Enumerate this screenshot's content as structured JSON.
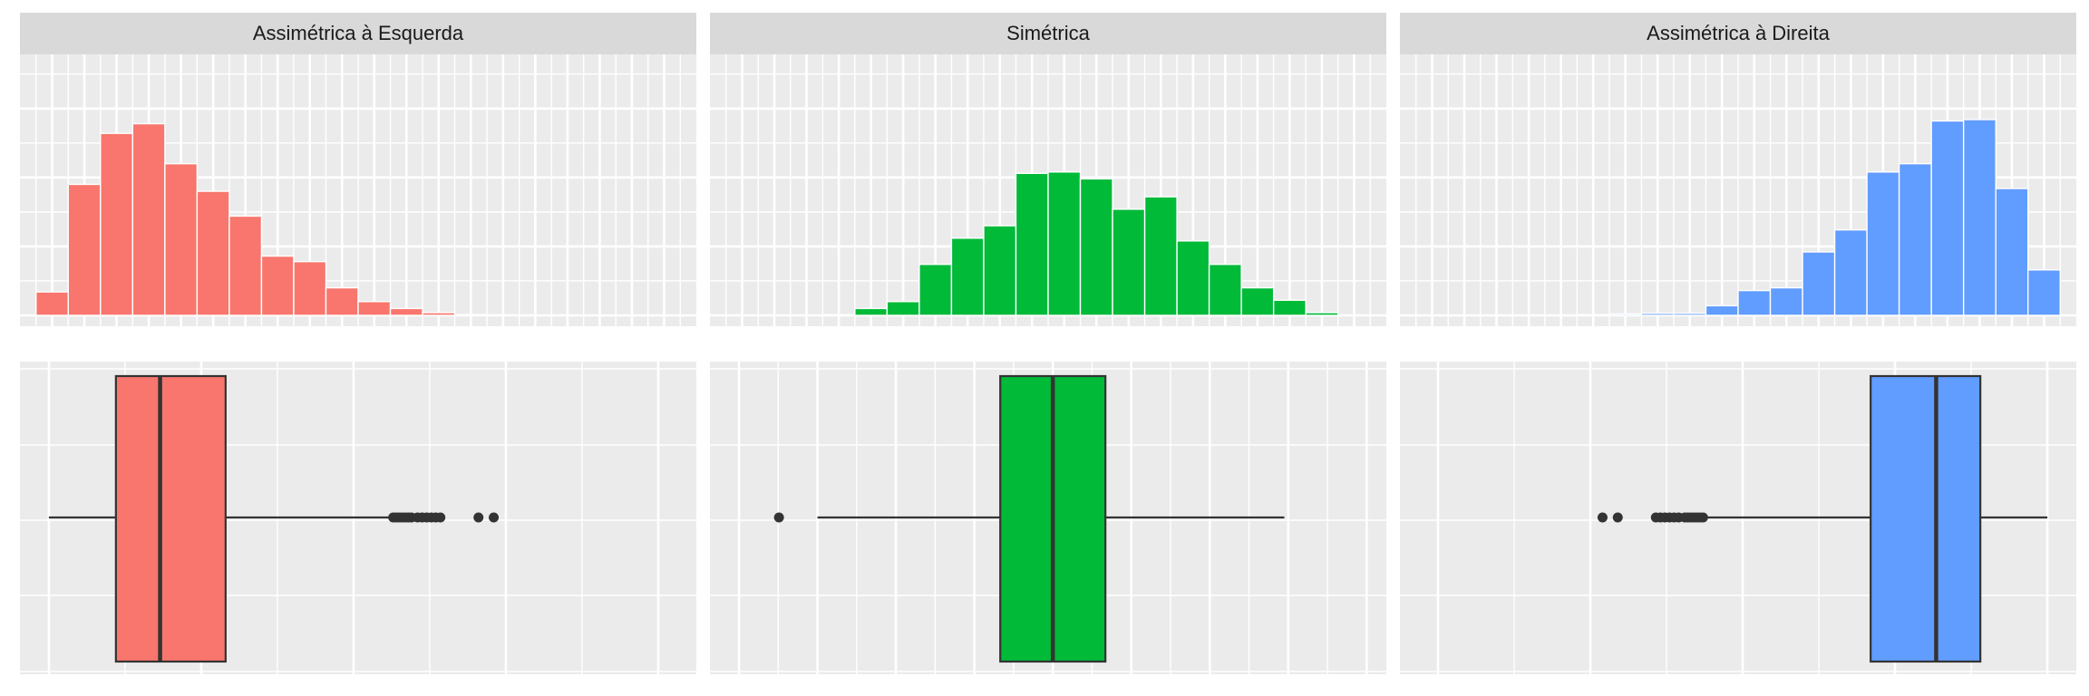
{
  "colors": {
    "panel_bg": "#ebebeb",
    "grid": "#ffffff",
    "strip_bg": "#d9d9d9",
    "box_line": "#333333",
    "left": "#f8766d",
    "symmetric": "#00ba38",
    "right": "#619cff"
  },
  "chart_data": [
    {
      "type": "bar",
      "facet": "Assimétrica à Esquerda",
      "title": "Assimétrica à Esquerda",
      "color_key": "left",
      "x_min": 0,
      "x_max": 21,
      "y_max": 186,
      "values": [
        17,
        95,
        132,
        139,
        110,
        90,
        72,
        43,
        39,
        20,
        10,
        5,
        2,
        0.6,
        0.3,
        0.2,
        0,
        0,
        0,
        0
      ],
      "xlabel": "",
      "ylabel": ""
    },
    {
      "type": "bar",
      "facet": "Simétrica",
      "title": "Simétrica",
      "color_key": "symmetric",
      "x_min": 0,
      "x_max": 21,
      "y_max": 186,
      "values": [
        0,
        0,
        0,
        0.5,
        5,
        10,
        37,
        56,
        65,
        103,
        104,
        99,
        77,
        86,
        54,
        37,
        20,
        11,
        2,
        0
      ],
      "xlabel": "",
      "ylabel": ""
    },
    {
      "type": "bar",
      "facet": "Assimétrica à Direita",
      "title": "Assimétrica à Direita",
      "color_key": "right",
      "x_min": 0,
      "x_max": 21,
      "y_max": 186,
      "values": [
        0,
        0,
        0,
        0,
        0,
        0.5,
        1,
        1.5,
        1.5,
        7,
        18,
        20,
        46,
        62,
        104,
        110,
        141,
        142,
        92,
        33
      ],
      "xlabel": "",
      "ylabel": ""
    },
    {
      "type": "box",
      "facet": "Assimétrica à Esquerda",
      "color_key": "left",
      "x_min": -0.19,
      "x_max": 4.25,
      "whisker_low": 0.0,
      "q1": 0.44,
      "median": 0.73,
      "q3": 1.16,
      "whisker_high": 2.25,
      "outliers": [
        2.26,
        2.28,
        2.3,
        2.32,
        2.34,
        2.36,
        2.38,
        2.42,
        2.45,
        2.48,
        2.51,
        2.54,
        2.57,
        2.82,
        2.92
      ]
    },
    {
      "type": "box",
      "facet": "Simétrica",
      "color_key": "symmetric",
      "x_min": -4.37,
      "x_max": 4.25,
      "whisker_low": -3.0,
      "q1": -0.67,
      "median": 0.0,
      "q3": 0.67,
      "whisker_high": 2.95,
      "outliers": [
        -3.49
      ]
    },
    {
      "type": "box",
      "facet": "Assimétrica à Direita",
      "color_key": "right",
      "x_min": -4.25,
      "x_max": 0.19,
      "whisker_low": -2.25,
      "q1": -1.16,
      "median": -0.73,
      "q3": -0.44,
      "whisker_high": 0.0,
      "outliers": [
        -2.92,
        -2.82,
        -2.57,
        -2.54,
        -2.51,
        -2.48,
        -2.45,
        -2.42,
        -2.38,
        -2.36,
        -2.34,
        -2.32,
        -2.3,
        -2.28,
        -2.26
      ]
    }
  ]
}
